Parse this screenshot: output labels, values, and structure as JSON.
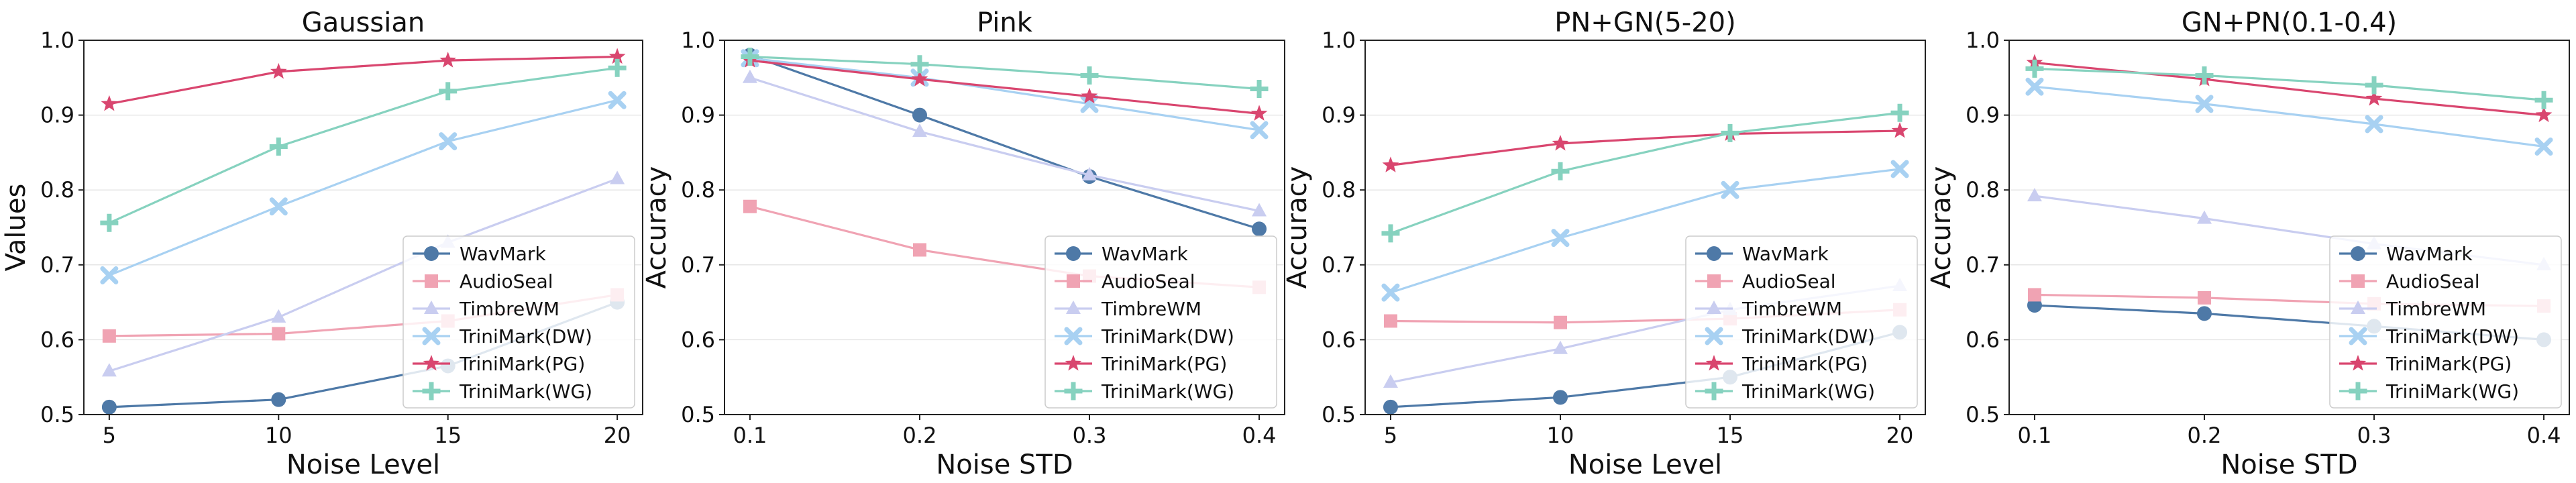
{
  "chart_data": [
    {
      "type": "line",
      "title": "Gaussian",
      "xlabel": "Noise Level",
      "ylabel": "Values",
      "x": [
        5,
        10,
        15,
        20
      ],
      "xticks": [
        "5",
        "10",
        "15",
        "20"
      ],
      "xlim": [
        4.25,
        20.75
      ],
      "ylim": [
        0.5,
        1.0
      ],
      "yticks": [
        "0.5",
        "0.6",
        "0.7",
        "0.8",
        "0.9",
        "1.0"
      ],
      "legend_position": "lower-right",
      "series": [
        {
          "name": "WavMark",
          "values": [
            0.51,
            0.52,
            0.565,
            0.65
          ]
        },
        {
          "name": "AudioSeal",
          "values": [
            0.605,
            0.608,
            0.625,
            0.66
          ]
        },
        {
          "name": "TimbreWM",
          "values": [
            0.558,
            0.63,
            0.73,
            0.815
          ]
        },
        {
          "name": "TriniMark(DW)",
          "values": [
            0.686,
            0.778,
            0.865,
            0.92
          ]
        },
        {
          "name": "TriniMark(PG)",
          "values": [
            0.915,
            0.958,
            0.973,
            0.978
          ]
        },
        {
          "name": "TriniMark(WG)",
          "values": [
            0.756,
            0.858,
            0.932,
            0.963
          ]
        }
      ]
    },
    {
      "type": "line",
      "title": "Pink",
      "xlabel": "Noise STD",
      "ylabel": "Accuracy",
      "x": [
        0.1,
        0.2,
        0.3,
        0.4
      ],
      "xticks": [
        "0.1",
        "0.2",
        "0.3",
        "0.4"
      ],
      "xlim": [
        0.085,
        0.415
      ],
      "ylim": [
        0.5,
        1.0
      ],
      "yticks": [
        "0.5",
        "0.6",
        "0.7",
        "0.8",
        "0.9",
        "1.0"
      ],
      "legend_position": "lower-right",
      "series": [
        {
          "name": "WavMark",
          "values": [
            0.98,
            0.9,
            0.818,
            0.748
          ]
        },
        {
          "name": "AudioSeal",
          "values": [
            0.778,
            0.72,
            0.685,
            0.67
          ]
        },
        {
          "name": "TimbreWM",
          "values": [
            0.95,
            0.878,
            0.82,
            0.772
          ]
        },
        {
          "name": "TriniMark(DW)",
          "values": [
            0.976,
            0.95,
            0.915,
            0.88
          ]
        },
        {
          "name": "TriniMark(PG)",
          "values": [
            0.973,
            0.948,
            0.925,
            0.902
          ]
        },
        {
          "name": "TriniMark(WG)",
          "values": [
            0.978,
            0.968,
            0.953,
            0.935
          ]
        }
      ]
    },
    {
      "type": "line",
      "title": "PN+GN(5-20)",
      "xlabel": "Noise Level",
      "ylabel": "Accuracy",
      "x": [
        5,
        10,
        15,
        20
      ],
      "xticks": [
        "5",
        "10",
        "15",
        "20"
      ],
      "xlim": [
        4.25,
        20.75
      ],
      "ylim": [
        0.5,
        1.0
      ],
      "yticks": [
        "0.5",
        "0.6",
        "0.7",
        "0.8",
        "0.9",
        "1.0"
      ],
      "legend_position": "lower-right",
      "series": [
        {
          "name": "WavMark",
          "values": [
            0.51,
            0.523,
            0.55,
            0.61
          ]
        },
        {
          "name": "AudioSeal",
          "values": [
            0.625,
            0.623,
            0.628,
            0.64
          ]
        },
        {
          "name": "TimbreWM",
          "values": [
            0.543,
            0.588,
            0.64,
            0.672
          ]
        },
        {
          "name": "TriniMark(DW)",
          "values": [
            0.663,
            0.736,
            0.8,
            0.828
          ]
        },
        {
          "name": "TriniMark(PG)",
          "values": [
            0.833,
            0.862,
            0.875,
            0.879
          ]
        },
        {
          "name": "TriniMark(WG)",
          "values": [
            0.742,
            0.825,
            0.876,
            0.903
          ]
        }
      ]
    },
    {
      "type": "line",
      "title": "GN+PN(0.1-0.4)",
      "xlabel": "Noise STD",
      "ylabel": "Accuracy",
      "x": [
        0.1,
        0.2,
        0.3,
        0.4
      ],
      "xticks": [
        "0.1",
        "0.2",
        "0.3",
        "0.4"
      ],
      "xlim": [
        0.085,
        0.415
      ],
      "ylim": [
        0.5,
        1.0
      ],
      "yticks": [
        "0.5",
        "0.6",
        "0.7",
        "0.8",
        "0.9",
        "1.0"
      ],
      "legend_position": "lower-right",
      "series": [
        {
          "name": "WavMark",
          "values": [
            0.646,
            0.635,
            0.618,
            0.6
          ]
        },
        {
          "name": "AudioSeal",
          "values": [
            0.66,
            0.656,
            0.648,
            0.645
          ]
        },
        {
          "name": "TimbreWM",
          "values": [
            0.792,
            0.762,
            0.728,
            0.7
          ]
        },
        {
          "name": "TriniMark(DW)",
          "values": [
            0.938,
            0.915,
            0.888,
            0.858
          ]
        },
        {
          "name": "TriniMark(PG)",
          "values": [
            0.97,
            0.948,
            0.922,
            0.9
          ]
        },
        {
          "name": "TriniMark(WG)",
          "values": [
            0.962,
            0.953,
            0.94,
            0.92
          ]
        }
      ]
    }
  ],
  "series_styles": [
    {
      "name": "WavMark",
      "color": "#4e79a7",
      "marker": "circle"
    },
    {
      "name": "AudioSeal",
      "color": "#f0a3b3",
      "marker": "square"
    },
    {
      "name": "TimbreWM",
      "color": "#c9cdf0",
      "marker": "triangle"
    },
    {
      "name": "TriniMark(DW)",
      "color": "#a8d1f2",
      "marker": "x"
    },
    {
      "name": "TriniMark(PG)",
      "color": "#d9466f",
      "marker": "star"
    },
    {
      "name": "TriniMark(WG)",
      "color": "#86d2bf",
      "marker": "plus"
    }
  ]
}
